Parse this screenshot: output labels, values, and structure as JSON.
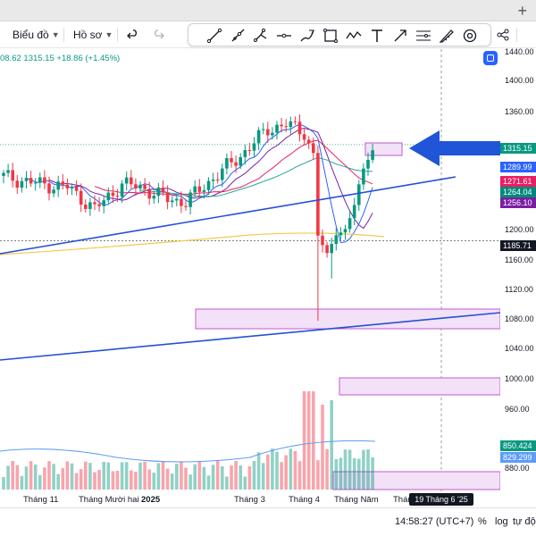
{
  "toolbar": {
    "interval_label": "Biểu đồ",
    "profile_label": "Hồ sơ",
    "new_tab_symbol": "+"
  },
  "legend": {
    "ohlc_partial": "08.62",
    "close": "1315.15",
    "change": "+18.86 (+1.45%)"
  },
  "price_axis": {
    "ticks": [
      "1440.00",
      "1400.00",
      "1360.00",
      "1200.00",
      "1160.00",
      "1120.00",
      "1080.00",
      "1040.00",
      "1000.00",
      "960.00",
      "880.00"
    ],
    "badges": [
      {
        "label": "1315.15",
        "color": "#089981"
      },
      {
        "label": "1289.99",
        "color": "#2962ff"
      },
      {
        "label": "1271.61",
        "color": "#e91e63"
      },
      {
        "label": "1264.04",
        "color": "#00897b"
      },
      {
        "label": "1256.10",
        "color": "#7b1fa2"
      },
      {
        "label": "1185.71",
        "color": "#131722"
      },
      {
        "label": "850.424",
        "color": "#089981"
      },
      {
        "label": "829.299",
        "color": "#5b9cf6"
      }
    ]
  },
  "time_axis": {
    "labels": [
      {
        "text": "Tháng 11",
        "bold": false
      },
      {
        "text": "Tháng Mười hai",
        "bold": false
      },
      {
        "text": "2025",
        "bold": true
      },
      {
        "text": "Tháng 3",
        "bold": false
      },
      {
        "text": "Tháng 4",
        "bold": false
      },
      {
        "text": "Tháng Năm",
        "bold": false
      },
      {
        "text": "Thán",
        "bold": false
      }
    ],
    "crosshair_date": "19 Tháng 6 '25"
  },
  "bottom_bar": {
    "clock": "14:58:27 (UTC+7)",
    "percent": "%",
    "log": "log",
    "auto": "tự độ"
  },
  "colors": {
    "up": "#089981",
    "down": "#f23645",
    "trendline": "#2450d8",
    "zone_fill": "#f3e1f7",
    "zone_border": "#c05ad0",
    "arrow": "#1f55d6"
  }
}
